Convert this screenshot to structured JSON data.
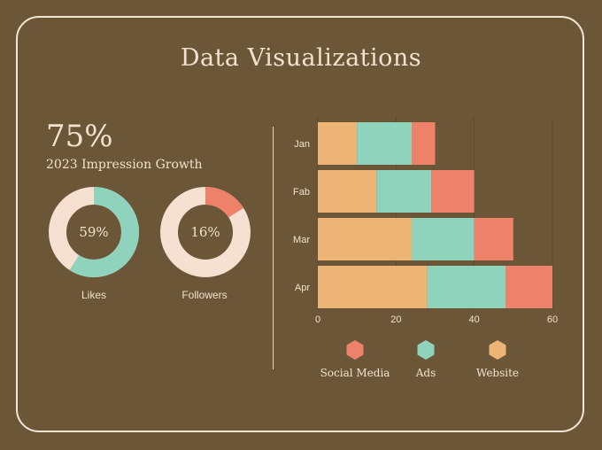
{
  "title": "Data Visualizations",
  "kpi": {
    "value": "75%",
    "label": "2023 Impression Growth"
  },
  "donuts": [
    {
      "value": "59%",
      "fraction": 0.59,
      "caption": "Likes",
      "color": "#8fd3bd"
    },
    {
      "value": "16%",
      "fraction": 0.16,
      "caption": "Followers",
      "color": "#ee816a"
    }
  ],
  "colors": {
    "track": "#f5e0d2",
    "website": "#ecb576",
    "ads": "#8fd3bd",
    "social": "#ee816a"
  },
  "chart_data": {
    "type": "bar",
    "orientation": "horizontal",
    "stacked": true,
    "categories": [
      "Jan",
      "Fab",
      "Mar",
      "Apr"
    ],
    "series": [
      {
        "name": "Website",
        "values": [
          10,
          15,
          24,
          28
        ],
        "color": "#ecb576"
      },
      {
        "name": "Ads",
        "values": [
          14,
          14,
          16,
          20
        ],
        "color": "#8fd3bd"
      },
      {
        "name": "Social Media",
        "values": [
          6,
          11,
          10,
          12
        ],
        "color": "#ee816a"
      }
    ],
    "xlim": [
      0,
      60
    ],
    "xticks": [
      "0",
      "20",
      "40",
      "60"
    ],
    "grid": true,
    "legend_position": "bottom"
  },
  "legend": [
    {
      "label": "Social Media",
      "color": "#ee816a"
    },
    {
      "label": "Ads",
      "color": "#8fd3bd"
    },
    {
      "label": "Website",
      "color": "#ecb576"
    }
  ]
}
